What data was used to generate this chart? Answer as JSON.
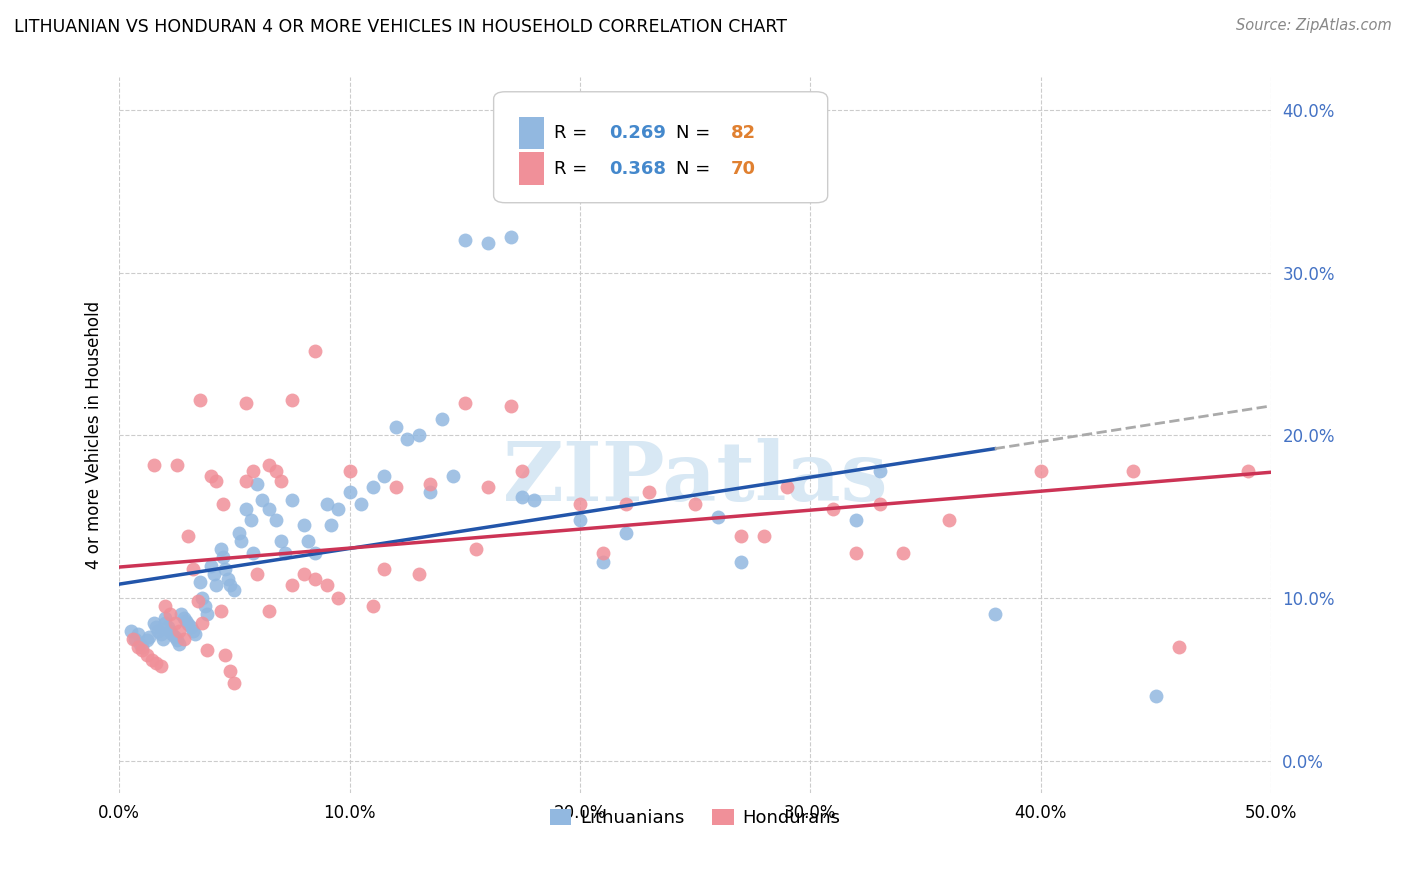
{
  "title": "LITHUANIAN VS HONDURAN 4 OR MORE VEHICLES IN HOUSEHOLD CORRELATION CHART",
  "source": "Source: ZipAtlas.com",
  "ylabel": "4 or more Vehicles in Household",
  "xlim": [
    0.0,
    0.5
  ],
  "ylim": [
    -0.02,
    0.42
  ],
  "xticks": [
    0.0,
    0.1,
    0.2,
    0.3,
    0.4,
    0.5
  ],
  "yticks": [
    0.0,
    0.1,
    0.2,
    0.3,
    0.4
  ],
  "lithuanian_color": "#92b8e0",
  "honduran_color": "#f09099",
  "trend_lit_color": "#2255aa",
  "trend_hon_color": "#cc3355",
  "legend_R_lit": "0.269",
  "legend_N_lit": "82",
  "legend_R_hon": "0.368",
  "legend_N_hon": "70",
  "legend_color_val": "#4488cc",
  "legend_color_n": "#e08030",
  "watermark_text": "ZIPatlas",
  "watermark_color": "#d8e8f4",
  "lit_x": [
    0.005,
    0.007,
    0.008,
    0.009,
    0.01,
    0.012,
    0.013,
    0.015,
    0.016,
    0.017,
    0.018,
    0.019,
    0.02,
    0.02,
    0.021,
    0.022,
    0.023,
    0.024,
    0.025,
    0.026,
    0.027,
    0.028,
    0.029,
    0.03,
    0.031,
    0.032,
    0.033,
    0.035,
    0.036,
    0.037,
    0.038,
    0.04,
    0.041,
    0.042,
    0.044,
    0.045,
    0.046,
    0.047,
    0.048,
    0.05,
    0.052,
    0.053,
    0.055,
    0.057,
    0.058,
    0.06,
    0.062,
    0.065,
    0.068,
    0.07,
    0.072,
    0.075,
    0.08,
    0.082,
    0.085,
    0.09,
    0.092,
    0.095,
    0.1,
    0.105,
    0.11,
    0.115,
    0.12,
    0.125,
    0.13,
    0.135,
    0.14,
    0.145,
    0.15,
    0.16,
    0.17,
    0.175,
    0.18,
    0.2,
    0.21,
    0.22,
    0.26,
    0.27,
    0.32,
    0.33,
    0.38,
    0.45
  ],
  "lit_y": [
    0.08,
    0.075,
    0.078,
    0.072,
    0.07,
    0.074,
    0.076,
    0.085,
    0.082,
    0.08,
    0.078,
    0.075,
    0.088,
    0.085,
    0.082,
    0.08,
    0.078,
    0.076,
    0.074,
    0.072,
    0.09,
    0.088,
    0.086,
    0.084,
    0.082,
    0.08,
    0.078,
    0.11,
    0.1,
    0.095,
    0.09,
    0.12,
    0.115,
    0.108,
    0.13,
    0.125,
    0.118,
    0.112,
    0.108,
    0.105,
    0.14,
    0.135,
    0.155,
    0.148,
    0.128,
    0.17,
    0.16,
    0.155,
    0.148,
    0.135,
    0.128,
    0.16,
    0.145,
    0.135,
    0.128,
    0.158,
    0.145,
    0.155,
    0.165,
    0.158,
    0.168,
    0.175,
    0.205,
    0.198,
    0.2,
    0.165,
    0.21,
    0.175,
    0.32,
    0.318,
    0.322,
    0.162,
    0.16,
    0.148,
    0.122,
    0.14,
    0.15,
    0.122,
    0.148,
    0.178,
    0.09,
    0.04
  ],
  "hon_x": [
    0.006,
    0.008,
    0.01,
    0.012,
    0.014,
    0.016,
    0.018,
    0.02,
    0.022,
    0.024,
    0.026,
    0.028,
    0.03,
    0.032,
    0.034,
    0.036,
    0.038,
    0.04,
    0.042,
    0.044,
    0.046,
    0.048,
    0.05,
    0.055,
    0.058,
    0.06,
    0.065,
    0.068,
    0.07,
    0.075,
    0.08,
    0.085,
    0.09,
    0.095,
    0.1,
    0.11,
    0.115,
    0.12,
    0.13,
    0.135,
    0.15,
    0.155,
    0.16,
    0.17,
    0.175,
    0.2,
    0.21,
    0.22,
    0.23,
    0.25,
    0.27,
    0.28,
    0.29,
    0.31,
    0.32,
    0.33,
    0.34,
    0.36,
    0.4,
    0.44,
    0.46,
    0.49,
    0.015,
    0.025,
    0.035,
    0.045,
    0.055,
    0.065,
    0.075,
    0.085
  ],
  "hon_y": [
    0.075,
    0.07,
    0.068,
    0.065,
    0.062,
    0.06,
    0.058,
    0.095,
    0.09,
    0.085,
    0.08,
    0.075,
    0.138,
    0.118,
    0.098,
    0.085,
    0.068,
    0.175,
    0.172,
    0.092,
    0.065,
    0.055,
    0.048,
    0.22,
    0.178,
    0.115,
    0.092,
    0.178,
    0.172,
    0.108,
    0.115,
    0.112,
    0.108,
    0.1,
    0.178,
    0.095,
    0.118,
    0.168,
    0.115,
    0.17,
    0.22,
    0.13,
    0.168,
    0.218,
    0.178,
    0.158,
    0.128,
    0.158,
    0.165,
    0.158,
    0.138,
    0.138,
    0.168,
    0.155,
    0.128,
    0.158,
    0.128,
    0.148,
    0.178,
    0.178,
    0.07,
    0.178,
    0.182,
    0.182,
    0.222,
    0.158,
    0.172,
    0.182,
    0.222,
    0.252
  ]
}
